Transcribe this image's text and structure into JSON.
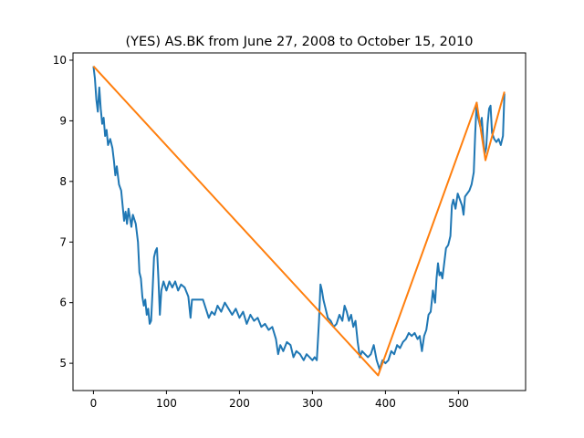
{
  "chart_data": {
    "type": "line",
    "title": "(YES) AS.BK from June 27, 2008 to October 15, 2010",
    "xlabel": "",
    "ylabel": "",
    "xlim": [
      -28,
      592
    ],
    "ylim": [
      4.55,
      10.12
    ],
    "x_ticks": [
      0,
      100,
      200,
      300,
      400,
      500
    ],
    "y_ticks": [
      5,
      6,
      7,
      8,
      9,
      10
    ],
    "grid": false,
    "series": [
      {
        "color": "#1f77b4",
        "points": [
          [
            0,
            9.9
          ],
          [
            2,
            9.7
          ],
          [
            4,
            9.35
          ],
          [
            6,
            9.15
          ],
          [
            8,
            9.55
          ],
          [
            10,
            9.2
          ],
          [
            12,
            8.95
          ],
          [
            14,
            9.05
          ],
          [
            16,
            8.75
          ],
          [
            18,
            8.85
          ],
          [
            20,
            8.6
          ],
          [
            23,
            8.7
          ],
          [
            26,
            8.55
          ],
          [
            28,
            8.35
          ],
          [
            30,
            8.1
          ],
          [
            32,
            8.25
          ],
          [
            35,
            7.95
          ],
          [
            38,
            7.85
          ],
          [
            40,
            7.6
          ],
          [
            42,
            7.35
          ],
          [
            44,
            7.5
          ],
          [
            46,
            7.3
          ],
          [
            48,
            7.55
          ],
          [
            50,
            7.4
          ],
          [
            52,
            7.25
          ],
          [
            54,
            7.45
          ],
          [
            58,
            7.3
          ],
          [
            61,
            7.0
          ],
          [
            63,
            6.5
          ],
          [
            65,
            6.4
          ],
          [
            67,
            6.1
          ],
          [
            69,
            5.95
          ],
          [
            71,
            6.05
          ],
          [
            73,
            5.8
          ],
          [
            75,
            5.9
          ],
          [
            77,
            5.65
          ],
          [
            79,
            5.7
          ],
          [
            81,
            6.2
          ],
          [
            83,
            6.75
          ],
          [
            85,
            6.85
          ],
          [
            87,
            6.9
          ],
          [
            89,
            6.4
          ],
          [
            91,
            5.8
          ],
          [
            93,
            6.2
          ],
          [
            96,
            6.35
          ],
          [
            100,
            6.2
          ],
          [
            104,
            6.35
          ],
          [
            108,
            6.25
          ],
          [
            112,
            6.35
          ],
          [
            116,
            6.2
          ],
          [
            120,
            6.3
          ],
          [
            125,
            6.25
          ],
          [
            130,
            6.1
          ],
          [
            133,
            5.75
          ],
          [
            135,
            6.05
          ],
          [
            140,
            6.05
          ],
          [
            145,
            6.05
          ],
          [
            150,
            6.05
          ],
          [
            154,
            5.9
          ],
          [
            158,
            5.75
          ],
          [
            162,
            5.85
          ],
          [
            166,
            5.8
          ],
          [
            170,
            5.95
          ],
          [
            175,
            5.85
          ],
          [
            180,
            6.0
          ],
          [
            185,
            5.9
          ],
          [
            190,
            5.8
          ],
          [
            195,
            5.9
          ],
          [
            200,
            5.75
          ],
          [
            205,
            5.85
          ],
          [
            210,
            5.65
          ],
          [
            215,
            5.8
          ],
          [
            220,
            5.7
          ],
          [
            225,
            5.75
          ],
          [
            230,
            5.6
          ],
          [
            235,
            5.65
          ],
          [
            240,
            5.55
          ],
          [
            245,
            5.6
          ],
          [
            250,
            5.4
          ],
          [
            253,
            5.15
          ],
          [
            256,
            5.3
          ],
          [
            260,
            5.2
          ],
          [
            265,
            5.35
          ],
          [
            270,
            5.3
          ],
          [
            274,
            5.1
          ],
          [
            278,
            5.2
          ],
          [
            283,
            5.15
          ],
          [
            288,
            5.05
          ],
          [
            292,
            5.15
          ],
          [
            296,
            5.1
          ],
          [
            300,
            5.05
          ],
          [
            303,
            5.1
          ],
          [
            306,
            5.05
          ],
          [
            309,
            5.7
          ],
          [
            311,
            6.3
          ],
          [
            313,
            6.2
          ],
          [
            315,
            6.05
          ],
          [
            318,
            5.9
          ],
          [
            321,
            5.75
          ],
          [
            325,
            5.7
          ],
          [
            329,
            5.6
          ],
          [
            333,
            5.65
          ],
          [
            337,
            5.8
          ],
          [
            341,
            5.7
          ],
          [
            344,
            5.95
          ],
          [
            347,
            5.85
          ],
          [
            350,
            5.7
          ],
          [
            353,
            5.8
          ],
          [
            356,
            5.6
          ],
          [
            359,
            5.7
          ],
          [
            362,
            5.35
          ],
          [
            365,
            5.1
          ],
          [
            368,
            5.2
          ],
          [
            372,
            5.15
          ],
          [
            376,
            5.1
          ],
          [
            380,
            5.15
          ],
          [
            384,
            5.3
          ],
          [
            388,
            5.05
          ],
          [
            392,
            4.9
          ],
          [
            396,
            5.05
          ],
          [
            400,
            5.0
          ],
          [
            404,
            5.05
          ],
          [
            408,
            5.2
          ],
          [
            412,
            5.15
          ],
          [
            416,
            5.3
          ],
          [
            420,
            5.25
          ],
          [
            424,
            5.35
          ],
          [
            428,
            5.4
          ],
          [
            432,
            5.5
          ],
          [
            436,
            5.45
          ],
          [
            440,
            5.5
          ],
          [
            444,
            5.4
          ],
          [
            447,
            5.45
          ],
          [
            450,
            5.2
          ],
          [
            453,
            5.45
          ],
          [
            456,
            5.55
          ],
          [
            459,
            5.8
          ],
          [
            462,
            5.85
          ],
          [
            465,
            6.2
          ],
          [
            468,
            6.0
          ],
          [
            470,
            6.4
          ],
          [
            472,
            6.65
          ],
          [
            474,
            6.45
          ],
          [
            476,
            6.5
          ],
          [
            478,
            6.4
          ],
          [
            480,
            6.6
          ],
          [
            483,
            6.9
          ],
          [
            486,
            6.95
          ],
          [
            489,
            7.1
          ],
          [
            491,
            7.6
          ],
          [
            493,
            7.7
          ],
          [
            496,
            7.55
          ],
          [
            499,
            7.8
          ],
          [
            502,
            7.7
          ],
          [
            505,
            7.6
          ],
          [
            507,
            7.45
          ],
          [
            509,
            7.75
          ],
          [
            512,
            7.8
          ],
          [
            515,
            7.85
          ],
          [
            518,
            7.95
          ],
          [
            521,
            8.15
          ],
          [
            523,
            8.8
          ],
          [
            525,
            9.3
          ],
          [
            527,
            9.05
          ],
          [
            530,
            8.9
          ],
          [
            532,
            9.05
          ],
          [
            534,
            8.7
          ],
          [
            536,
            8.45
          ],
          [
            538,
            8.55
          ],
          [
            540,
            8.95
          ],
          [
            542,
            9.2
          ],
          [
            544,
            9.25
          ],
          [
            546,
            8.8
          ],
          [
            549,
            8.7
          ],
          [
            552,
            8.65
          ],
          [
            555,
            8.7
          ],
          [
            558,
            8.6
          ],
          [
            561,
            8.75
          ],
          [
            563,
            9.45
          ]
        ]
      },
      {
        "color": "#ff7f0e",
        "points": [
          [
            0,
            9.9
          ],
          [
            390,
            4.8
          ],
          [
            525,
            9.3
          ],
          [
            537,
            8.35
          ],
          [
            563,
            9.48
          ]
        ]
      }
    ]
  }
}
